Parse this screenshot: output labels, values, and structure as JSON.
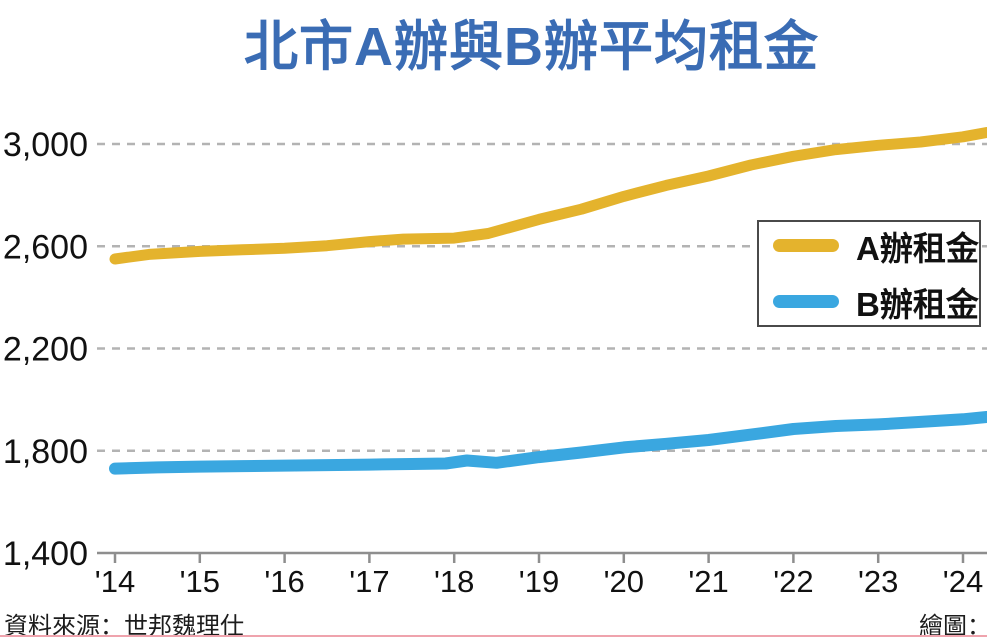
{
  "title": "北市A辦與B辦平均租金",
  "colors": {
    "title": "#3a6cb4",
    "a_line": "#e4b32d",
    "b_line": "#3aa7e0",
    "grid": "#b3b3b3",
    "axis": "#8e8e8e",
    "tick_text": "#111111",
    "footer_rule": "#efa3ad"
  },
  "legend": {
    "items": [
      {
        "label": "A辦租金",
        "color": "#e4b32d"
      },
      {
        "label": "B辦租金",
        "color": "#3aa7e0"
      }
    ]
  },
  "footer": {
    "source": "資料來源：世邦魏理仕",
    "credit": "繪圖："
  },
  "chart_data": {
    "type": "line",
    "title": "北市A辦與B辦平均租金",
    "xlabel": "",
    "ylabel": "",
    "xlim": [
      2014,
      2024.3
    ],
    "ylim": [
      1400,
      3100
    ],
    "grid": "horizontal-dashed",
    "legend_position": "right-middle",
    "x_tick_years": [
      2014,
      2015,
      2016,
      2017,
      2018,
      2019,
      2020,
      2021,
      2022,
      2023,
      2024
    ],
    "x_tick_labels": [
      "'14",
      "'15",
      "'16",
      "'17",
      "'18",
      "'19",
      "'20",
      "'21",
      "'22",
      "'23",
      "'24"
    ],
    "y_ticks": [
      1400,
      1800,
      2200,
      2600,
      3000
    ],
    "y_tick_labels": [
      "1,400",
      "1,800",
      "2,200",
      "2,600",
      "3,000"
    ],
    "series": [
      {
        "name": "A辦租金",
        "color": "#e4b32d",
        "stroke_width": 11,
        "points": [
          [
            2014.0,
            2550
          ],
          [
            2014.4,
            2568
          ],
          [
            2015.0,
            2580
          ],
          [
            2015.5,
            2586
          ],
          [
            2016.0,
            2592
          ],
          [
            2016.5,
            2602
          ],
          [
            2017.0,
            2618
          ],
          [
            2017.4,
            2628
          ],
          [
            2018.0,
            2632
          ],
          [
            2018.4,
            2650
          ],
          [
            2019.0,
            2705
          ],
          [
            2019.5,
            2745
          ],
          [
            2020.0,
            2795
          ],
          [
            2020.5,
            2838
          ],
          [
            2021.0,
            2875
          ],
          [
            2021.5,
            2918
          ],
          [
            2022.0,
            2952
          ],
          [
            2022.5,
            2978
          ],
          [
            2023.0,
            2995
          ],
          [
            2023.5,
            3008
          ],
          [
            2024.0,
            3028
          ],
          [
            2024.28,
            3045
          ]
        ]
      },
      {
        "name": "B辦租金",
        "color": "#3aa7e0",
        "stroke_width": 12,
        "points": [
          [
            2014.0,
            1730
          ],
          [
            2014.5,
            1735
          ],
          [
            2015.0,
            1738
          ],
          [
            2015.5,
            1740
          ],
          [
            2016.0,
            1742
          ],
          [
            2016.5,
            1744
          ],
          [
            2017.0,
            1746
          ],
          [
            2017.5,
            1748
          ],
          [
            2017.9,
            1750
          ],
          [
            2018.15,
            1762
          ],
          [
            2018.5,
            1753
          ],
          [
            2019.0,
            1775
          ],
          [
            2019.5,
            1793
          ],
          [
            2020.0,
            1813
          ],
          [
            2020.5,
            1827
          ],
          [
            2021.0,
            1842
          ],
          [
            2021.5,
            1863
          ],
          [
            2022.0,
            1885
          ],
          [
            2022.5,
            1897
          ],
          [
            2023.0,
            1903
          ],
          [
            2023.5,
            1913
          ],
          [
            2024.0,
            1923
          ],
          [
            2024.28,
            1932
          ]
        ]
      }
    ]
  }
}
